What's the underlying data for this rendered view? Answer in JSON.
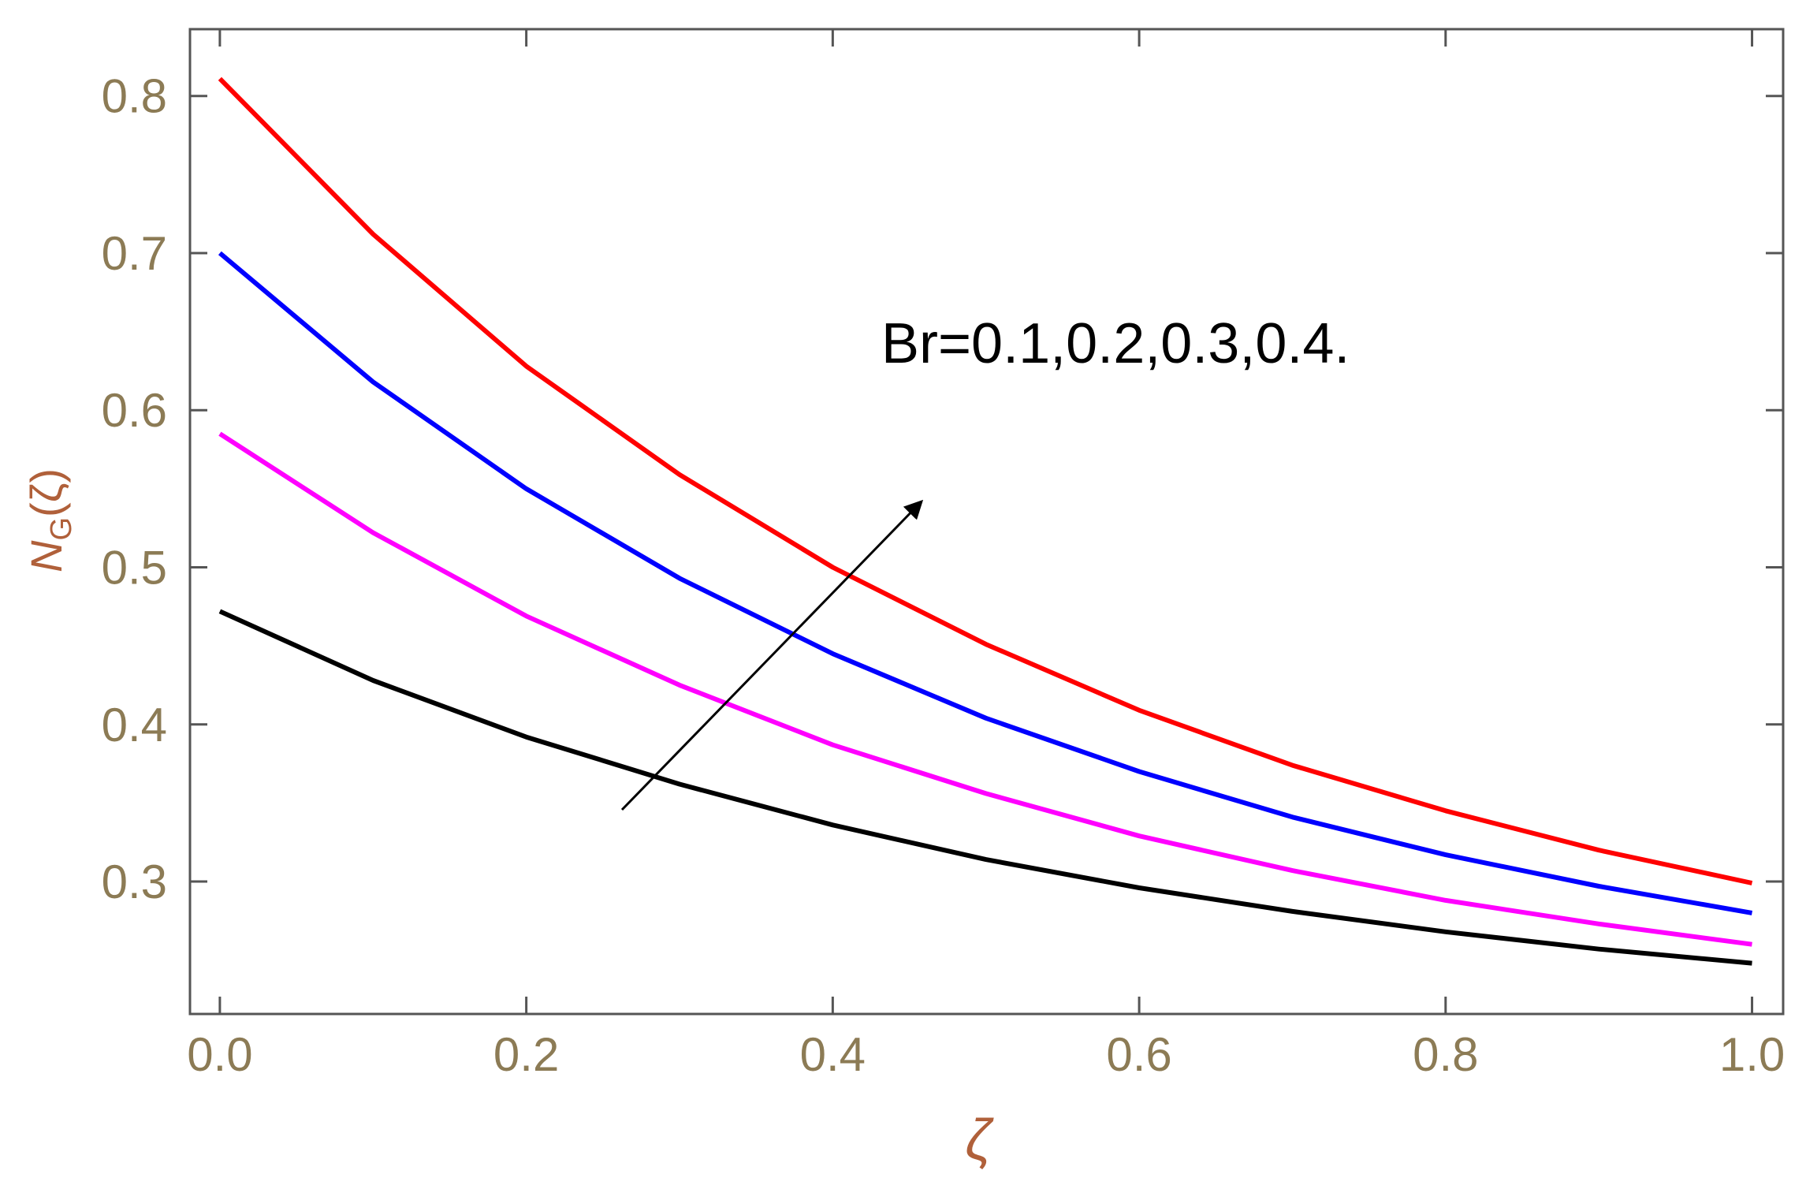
{
  "chart_data": {
    "type": "line",
    "x": [
      0,
      0.1,
      0.2,
      0.3,
      0.4,
      0.5,
      0.6,
      0.7,
      0.8,
      0.9,
      1.0
    ],
    "series": [
      {
        "color": "#ff0000",
        "values": [
          0.811,
          0.712,
          0.628,
          0.559,
          0.5,
          0.451,
          0.409,
          0.374,
          0.345,
          0.32,
          0.299
        ]
      },
      {
        "color": "#0000ff",
        "values": [
          0.7,
          0.618,
          0.55,
          0.493,
          0.445,
          0.404,
          0.37,
          0.341,
          0.317,
          0.297,
          0.28
        ]
      },
      {
        "color": "#ff00ff",
        "values": [
          0.585,
          0.522,
          0.469,
          0.425,
          0.387,
          0.356,
          0.329,
          0.307,
          0.288,
          0.273,
          0.26
        ]
      },
      {
        "color": "#000000",
        "values": [
          0.472,
          0.428,
          0.392,
          0.362,
          0.336,
          0.314,
          0.296,
          0.281,
          0.268,
          0.257,
          0.248
        ]
      }
    ],
    "xlim": [
      -0.0195,
      1.0203
    ],
    "ylim": [
      0.2157,
      0.8425
    ],
    "xticks": [
      {
        "value": 0,
        "label": "0.0"
      },
      0.2,
      0.4,
      0.6,
      0.8,
      {
        "value": 1,
        "label": "1.0"
      }
    ],
    "yticks": [
      0.3,
      0.4,
      0.5,
      0.6,
      0.7,
      0.8
    ],
    "x_label": "ζ",
    "y_label": [
      "N",
      "G",
      "(ζ)"
    ],
    "annotation": "Br=0.1,0.2,0.3,0.4."
  }
}
